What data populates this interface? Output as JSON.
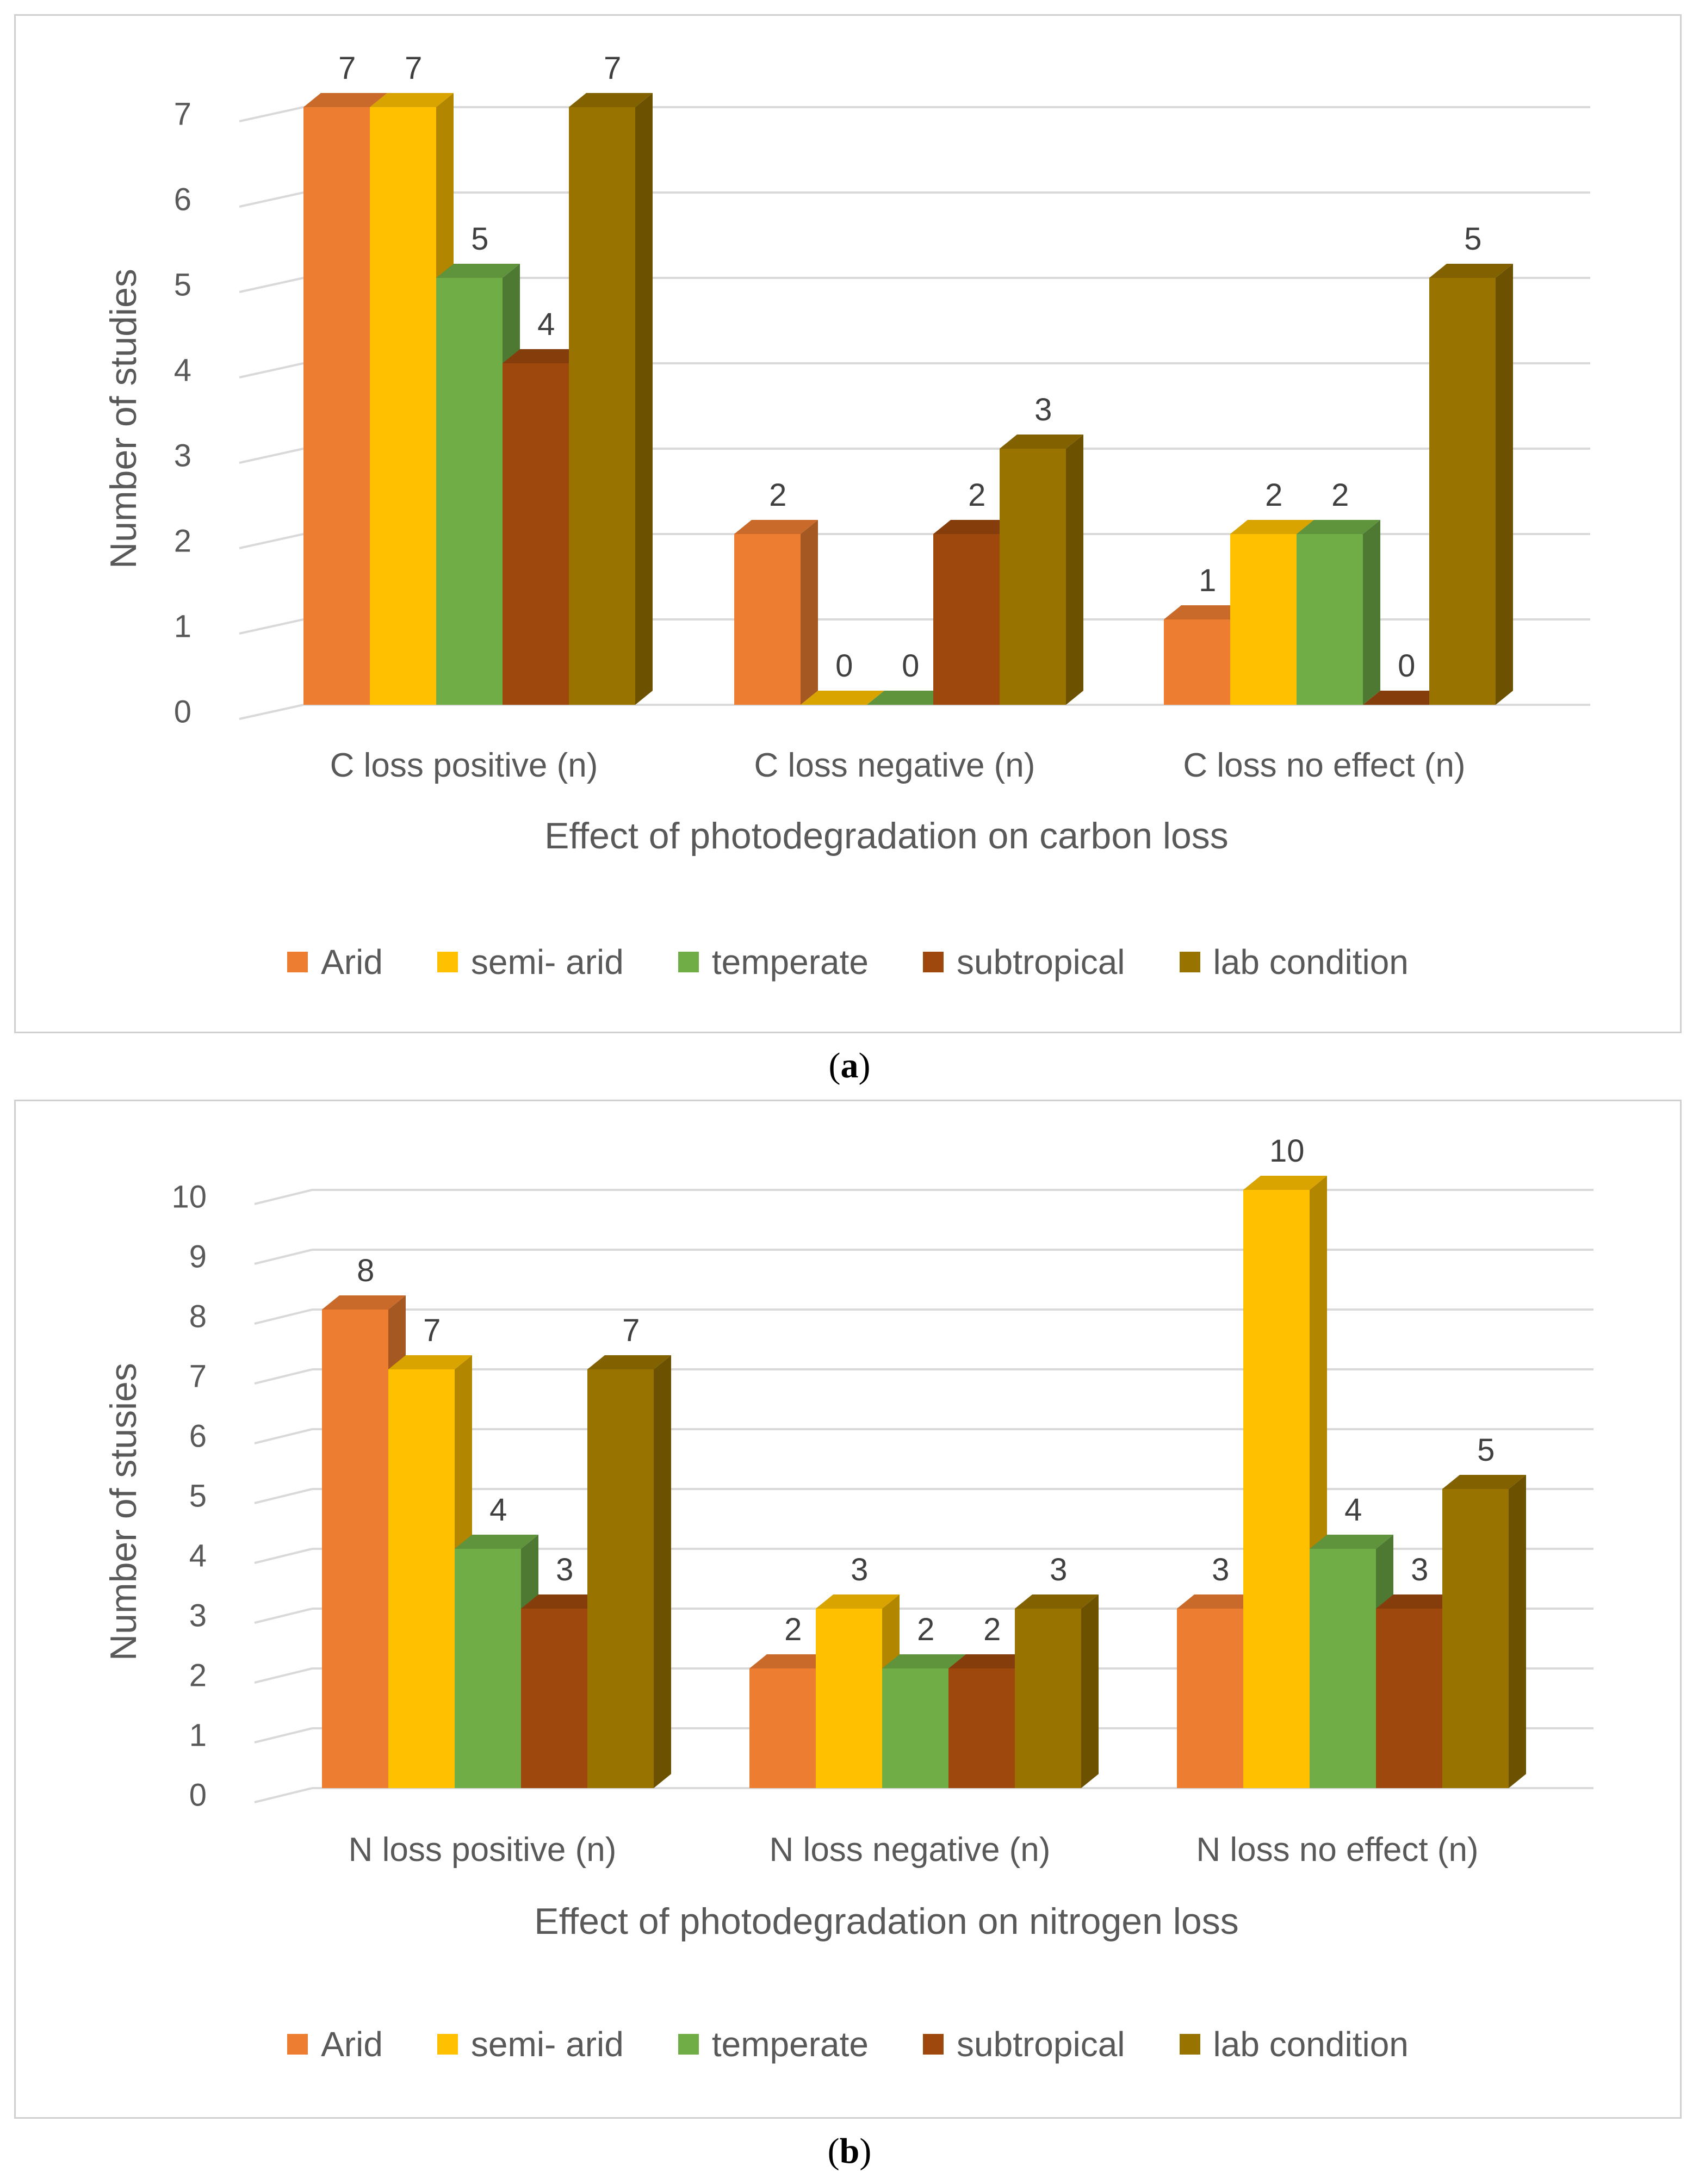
{
  "legend": [
    {
      "name": "Arid",
      "color": "#ED7D31"
    },
    {
      "name": "semi- arid",
      "color": "#FFC000"
    },
    {
      "name": "temperate",
      "color": "#70AD47"
    },
    {
      "name": "subtropical",
      "color": "#9E480E"
    },
    {
      "name": "lab condition",
      "color": "#997300"
    }
  ],
  "captions": {
    "a_letter": "a",
    "b_letter": "b"
  },
  "chart_data": [
    {
      "id": "a",
      "type": "bar",
      "title": "",
      "xlabel": "Effect of photodegradation on carbon loss",
      "ylabel": "Number of studies",
      "ylim": [
        0,
        7
      ],
      "yticks": [
        0,
        1,
        2,
        3,
        4,
        5,
        6,
        7
      ],
      "categories": [
        "C loss positive (n)",
        "C loss negative (n)",
        "C loss no effect (n)"
      ],
      "series": [
        {
          "name": "Arid",
          "values": [
            7,
            2,
            1
          ]
        },
        {
          "name": "semi- arid",
          "values": [
            7,
            0,
            2
          ]
        },
        {
          "name": "temperate",
          "values": [
            5,
            0,
            2
          ]
        },
        {
          "name": "subtropical",
          "values": [
            4,
            2,
            0
          ]
        },
        {
          "name": "lab condition",
          "values": [
            7,
            3,
            5
          ]
        }
      ],
      "legend_position": "bottom"
    },
    {
      "id": "b",
      "type": "bar",
      "title": "",
      "xlabel": "Effect of photodegradation on nitrogen loss",
      "ylabel": "Number of stusies",
      "ylim": [
        0,
        10
      ],
      "yticks": [
        0,
        1,
        2,
        3,
        4,
        5,
        6,
        7,
        8,
        9,
        10
      ],
      "categories": [
        "N loss positive (n)",
        "N loss negative (n)",
        "N loss no effect (n)"
      ],
      "series": [
        {
          "name": "Arid",
          "values": [
            8,
            2,
            3
          ]
        },
        {
          "name": "semi- arid",
          "values": [
            7,
            3,
            10
          ]
        },
        {
          "name": "temperate",
          "values": [
            4,
            2,
            4
          ]
        },
        {
          "name": "subtropical",
          "values": [
            3,
            2,
            3
          ]
        },
        {
          "name": "lab condition",
          "values": [
            7,
            3,
            5
          ]
        }
      ],
      "legend_position": "bottom"
    }
  ]
}
